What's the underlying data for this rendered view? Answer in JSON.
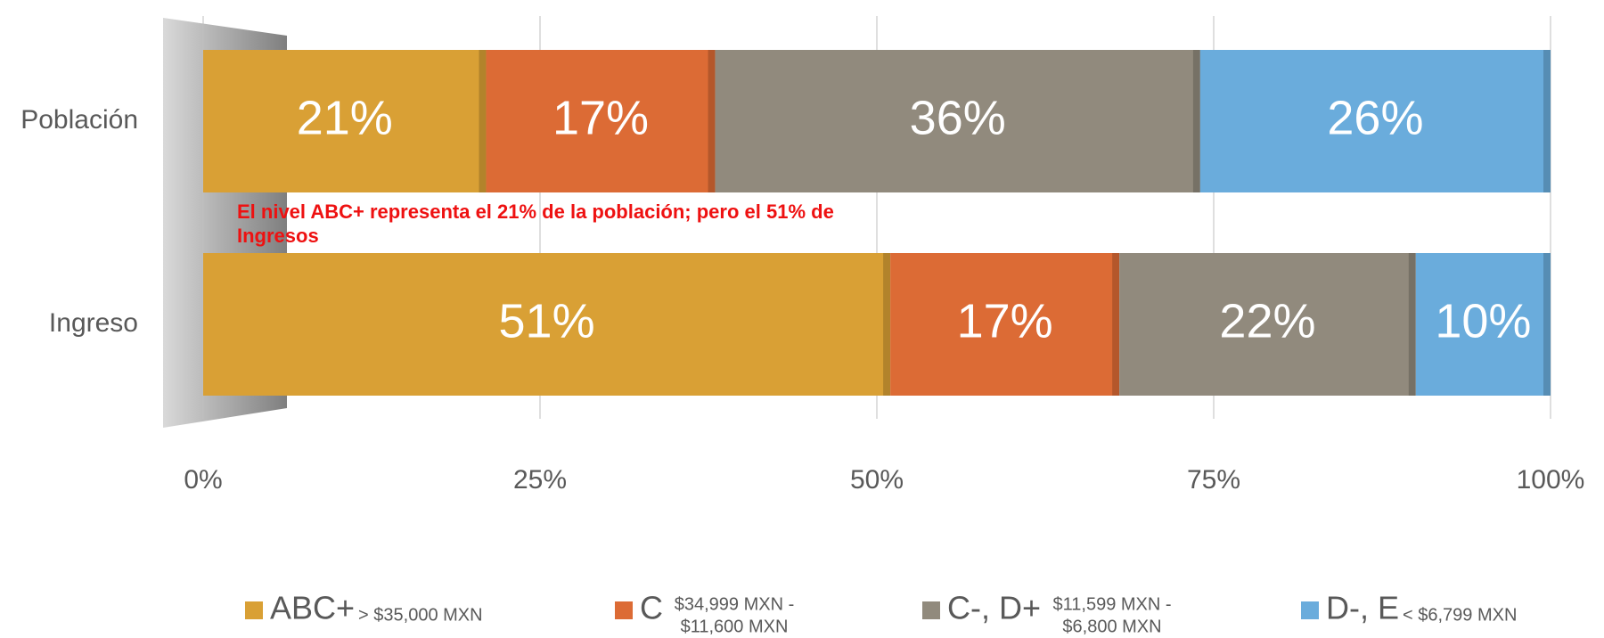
{
  "chart_data": {
    "type": "stacked_bar_100",
    "orientation": "horizontal",
    "categories": [
      "Población",
      "Ingreso"
    ],
    "series": [
      {
        "name": "ABC+",
        "description": [
          "> $35,000 MXN"
        ],
        "color": "#d9a035",
        "values": [
          21,
          51
        ],
        "value_labels": [
          "21%",
          "51%"
        ]
      },
      {
        "name": "C",
        "description": [
          "$34,999 MXN -",
          "$11,600 MXN"
        ],
        "color": "#dc6b35",
        "values": [
          17,
          17
        ],
        "value_labels": [
          "17%",
          "17%"
        ]
      },
      {
        "name": "C-, D+",
        "description": [
          "$11,599 MXN -",
          "$6,800 MXN"
        ],
        "color": "#918a7d",
        "values": [
          36,
          22
        ],
        "value_labels": [
          "36%",
          "22%"
        ]
      },
      {
        "name": "D-, E",
        "description": [
          "< $6,799 MXN"
        ],
        "color": "#6aacdc",
        "values": [
          26,
          10
        ],
        "value_labels": [
          "26%",
          "10%"
        ]
      }
    ],
    "xlim": [
      0,
      100
    ],
    "xticks": [
      {
        "value": 0,
        "label": "0%"
      },
      {
        "value": 25,
        "label": "25%"
      },
      {
        "value": 50,
        "label": "50%"
      },
      {
        "value": 75,
        "label": "75%"
      },
      {
        "value": 100,
        "label": "100%"
      }
    ],
    "grid": true,
    "annotation": "El nivel ABC+ representa el 21% de la población; pero el 51% de Ingresos",
    "legend": "bottom"
  }
}
